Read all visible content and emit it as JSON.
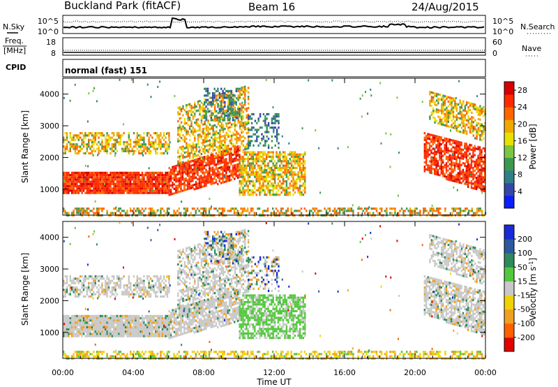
{
  "header": {
    "site": "Buckland Park (fitACF)",
    "beam": "Beam 16",
    "date": "24/Aug/2015"
  },
  "status_panels": {
    "nsky_label": "N.Sky",
    "nsky_ticks": [
      "10^5",
      "10^0"
    ],
    "nsearch_label": "N.Search",
    "nsearch_ticks": [
      "10^5",
      "10^0"
    ],
    "freq_label_1": "Freq.",
    "freq_label_2": "[MHz]",
    "freq_ticks": [
      "18",
      "8"
    ],
    "nave_label": "Nave",
    "nave_ticks": [
      "60",
      "0"
    ],
    "cpid_label": "CPID",
    "cpid_value": "normal (fast) 151"
  },
  "chart_data": [
    {
      "type": "heatmap",
      "title": "",
      "parameter": "Power",
      "xlabel": "Time UT",
      "ylabel": "Slant Range [km]",
      "x_range_hours": [
        0,
        24
      ],
      "x_ticks": [
        "00:00",
        "04:00",
        "08:00",
        "12:00",
        "16:00",
        "20:00",
        "00:00"
      ],
      "ylim": [
        180,
        4500
      ],
      "y_ticks": [
        1000,
        2000,
        3000,
        4000
      ],
      "colorbar": {
        "label": "Power [dB]",
        "ticks": [
          4,
          8,
          12,
          16,
          20,
          24,
          28
        ],
        "range": [
          0,
          30
        ],
        "colors": [
          "#0a1eff",
          "#3548a8",
          "#2f7f88",
          "#3e9850",
          "#79c640",
          "#e8e000",
          "#f0a800",
          "#ff6600",
          "#ff2a00",
          "#d60000"
        ]
      }
    },
    {
      "type": "heatmap",
      "title": "",
      "parameter": "Velocity",
      "xlabel": "Time UT",
      "ylabel": "Slant Range [km]",
      "x_range_hours": [
        0,
        24
      ],
      "x_ticks": [
        "00:00",
        "04:00",
        "08:00",
        "12:00",
        "16:00",
        "20:00",
        "00:00"
      ],
      "ylim": [
        180,
        4500
      ],
      "y_ticks": [
        1000,
        2000,
        3000,
        4000
      ],
      "colorbar": {
        "label": "Velocity [m s-1]",
        "ticks": [
          200,
          100,
          50,
          15,
          -15,
          -50,
          -100,
          -200
        ],
        "colors": [
          "#1a2ad6",
          "#2c58a0",
          "#2e8a5a",
          "#52c83c",
          "#c8c8c8",
          "#f0d200",
          "#f0a020",
          "#ff6000",
          "#e00000"
        ]
      }
    }
  ],
  "scatter_regions": [
    {
      "t0": 0.0,
      "t1": 6.0,
      "r0": 900,
      "r1": 1550,
      "density": 0.95,
      "kind": "strong"
    },
    {
      "t0": 6.0,
      "t1": 10.0,
      "r0": 850,
      "r1": 1700,
      "density": 0.8,
      "kind": "strong-rising"
    },
    {
      "t0": 0.0,
      "t1": 6.0,
      "r0": 2100,
      "r1": 2800,
      "density": 0.55,
      "kind": "medium"
    },
    {
      "t0": 6.5,
      "t1": 10.5,
      "r0": 1800,
      "r1": 3600,
      "density": 0.55,
      "kind": "medium-rising"
    },
    {
      "t0": 8.0,
      "t1": 10.0,
      "r0": 3200,
      "r1": 4200,
      "density": 0.35,
      "kind": "weak"
    },
    {
      "t0": 10.0,
      "t1": 13.8,
      "r0": 800,
      "r1": 2200,
      "density": 0.7,
      "kind": "medium-green"
    },
    {
      "t0": 10.5,
      "t1": 12.3,
      "r0": 2300,
      "r1": 3400,
      "density": 0.35,
      "kind": "weak"
    },
    {
      "t0": 20.5,
      "t1": 24.0,
      "r0": 900,
      "r1": 2300,
      "density": 0.75,
      "kind": "strong-falling"
    },
    {
      "t0": 20.8,
      "t1": 24.0,
      "r0": 2500,
      "r1": 3600,
      "density": 0.6,
      "kind": "medium-falling"
    },
    {
      "t0": 0.0,
      "t1": 24.0,
      "r0": 180,
      "r1": 420,
      "density": 0.5,
      "kind": "ground"
    }
  ]
}
